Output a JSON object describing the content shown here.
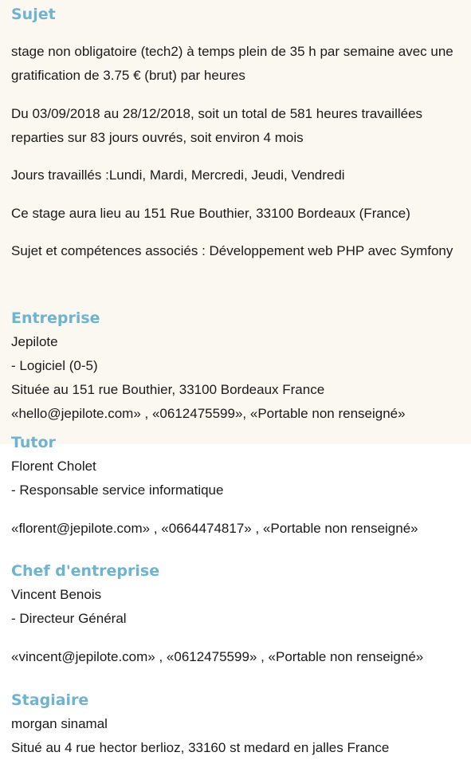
{
  "sujet": {
    "heading": "Sujet",
    "p1": "stage non obligatoire (tech2) à temps plein de 35 h par semaine avec une gratification de 3.75 € (brut) par heures",
    "p2": "Du 03/09/2018 au 28/12/2018, soit un total de 581 heures travaillées reparties sur 83 jours ouvrés, soit environ 4 mois",
    "p3": "Jours travaillés :Lundi, Mardi, Mercredi, Jeudi, Vendredi",
    "p4": "Ce stage aura lieu au 151 Rue Bouthier, 33100 Bordeaux (France)",
    "p5": "Sujet et compétences associés : Développement web PHP avec Symfony"
  },
  "entreprise": {
    "heading": "Entreprise",
    "name": "Jepilote",
    "sector": "- Logiciel (0-5)",
    "address": "Située au 151 rue Bouthier, 33100 Bordeaux France",
    "contacts": "«hello@jepilote.com» , «0612475599», «Portable non renseigné»"
  },
  "tutor": {
    "heading": "Tutor",
    "name": "Florent Cholet",
    "role": "- Responsable service informatique",
    "contacts": "«florent@jepilote.com» , «0664474817» , «Portable non renseigné»"
  },
  "chef": {
    "heading": "Chef d'entreprise",
    "name": "Vincent Benois",
    "role": "- Directeur Général",
    "contacts": "«vincent@jepilote.com» , «0612475599» , «Portable non renseigné»"
  },
  "stagiaire": {
    "heading": "Stagiaire",
    "name": "morgan sinamal",
    "address": "Situé au 4 rue hector berlioz, 33160 st medard en jalles France"
  }
}
